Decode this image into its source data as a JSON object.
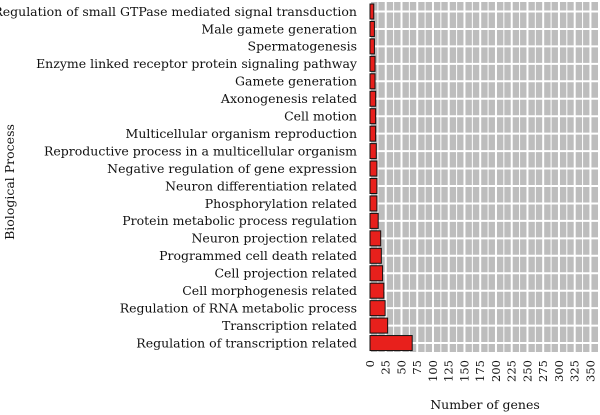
{
  "chart_data": {
    "type": "bar",
    "orientation": "horizontal",
    "xlabel": "Number of genes",
    "ylabel": "Biological Process",
    "xlim": [
      0,
      362
    ],
    "xticks": [
      0,
      25,
      50,
      75,
      100,
      125,
      150,
      175,
      200,
      225,
      250,
      275,
      300,
      325,
      350
    ],
    "grid": true,
    "bar_color": "#e8201c",
    "categories": [
      "Regulation of small GTPase mediated signal transduction",
      "Male gamete generation",
      "Spermatogenesis",
      "Enzyme linked receptor protein signaling pathway",
      "Gamete generation",
      "Axonogenesis related",
      "Cell motion",
      "Multicellular organism reproduction",
      "Reproductive process in a multicellular organism",
      "Negative regulation of gene expression",
      "Neuron differentiation related",
      "Phosphorylation related",
      "Protein metabolic process regulation",
      "Neuron projection related",
      "Programmed cell death related",
      "Cell projection related",
      "Cell morphogenesis related",
      "Regulation of RNA metabolic process",
      "Transcription related",
      "Regulation of transcription related"
    ],
    "values": [
      6,
      7,
      7,
      8,
      8,
      9,
      9,
      9,
      10,
      11,
      11,
      11,
      13,
      17,
      18,
      20,
      22,
      24,
      28,
      67
    ]
  }
}
